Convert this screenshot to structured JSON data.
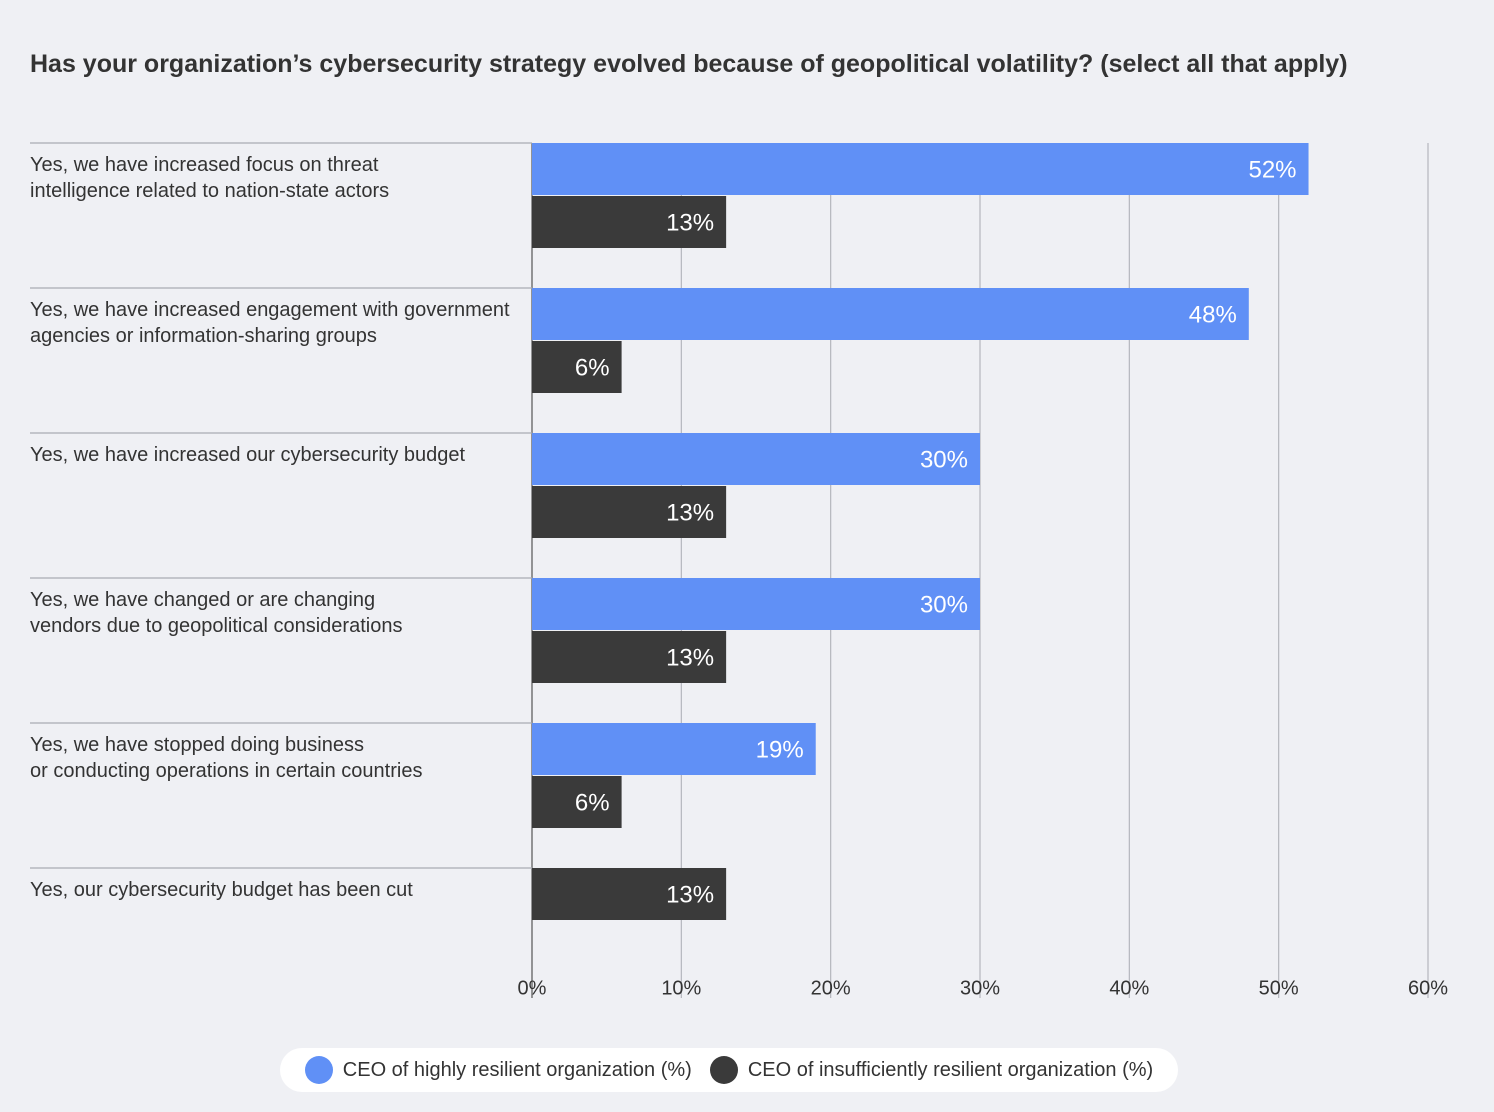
{
  "chart_data": {
    "type": "hbar",
    "title": "Has your organization’s cybersecurity strategy evolved because of geopolitical volatility? (select all that apply)",
    "categories": [
      "Yes, we have increased focus on threat\nintelligence related to nation-state actors",
      "Yes, we have increased engagement with government\nagencies or information-sharing groups",
      "Yes, we have increased our cybersecurity budget",
      "Yes, we have changed or are changing\nvendors due to geopolitical considerations",
      "Yes, we have stopped doing business\nor conducting operations in certain countries",
      "Yes, our cybersecurity budget has been cut"
    ],
    "series": [
      {
        "name": "CEO of highly resilient organization (%)",
        "color": "#6090f6",
        "values": [
          52,
          48,
          30,
          30,
          19,
          null
        ],
        "value_labels": [
          "52%",
          "48%",
          "30%",
          "30%",
          "19%",
          null
        ]
      },
      {
        "name": "CEO of insufficiently resilient organization (%)",
        "color": "#3a3a3a",
        "values": [
          13,
          6,
          13,
          13,
          6,
          13
        ],
        "value_labels": [
          "13%",
          "6%",
          "13%",
          "13%",
          "6%",
          "13%"
        ]
      }
    ],
    "xlim": [
      0,
      60
    ],
    "xticks": [
      {
        "value": 0,
        "label": "0%"
      },
      {
        "value": 10,
        "label": "10%"
      },
      {
        "value": 20,
        "label": "20%"
      },
      {
        "value": 30,
        "label": "30%"
      },
      {
        "value": 40,
        "label": "40%"
      },
      {
        "value": 50,
        "label": "50%"
      },
      {
        "value": 60,
        "label": "60%"
      }
    ],
    "grid": true,
    "legend": "bottom"
  }
}
